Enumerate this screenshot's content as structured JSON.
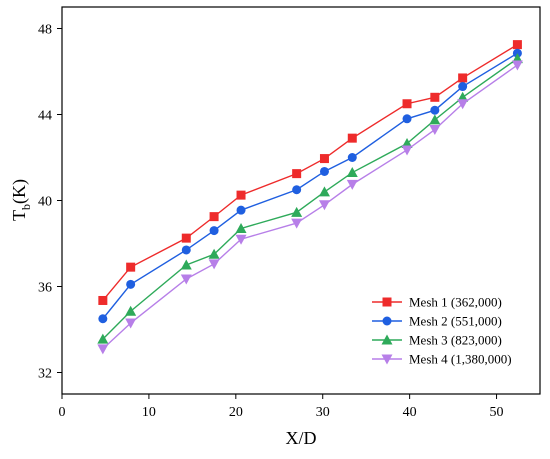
{
  "chart_data": {
    "type": "line",
    "title": "",
    "xlabel": "X/D",
    "ylabel_main": "T",
    "ylabel_sub": "b",
    "ylabel_tail": "(K)",
    "xlim": [
      0,
      55
    ],
    "ylim": [
      31,
      49
    ],
    "xticks": [
      0,
      10,
      20,
      30,
      40,
      50
    ],
    "yticks": [
      32,
      36,
      40,
      44,
      48
    ],
    "grid": false,
    "legend_position": "bottom-right",
    "x": [
      4.7,
      7.9,
      14.3,
      17.5,
      20.6,
      27.0,
      30.2,
      33.4,
      39.7,
      42.9,
      46.1,
      52.4
    ],
    "series": [
      {
        "name": "Mesh 1 (362,000)",
        "color": "#ee2b2b",
        "marker": "square",
        "values": [
          35.35,
          36.9,
          38.25,
          39.25,
          40.25,
          41.25,
          41.95,
          42.9,
          44.5,
          44.8,
          45.7,
          47.25
        ]
      },
      {
        "name": "Mesh 2 (551,000)",
        "color": "#1f5fe0",
        "marker": "circle",
        "values": [
          34.5,
          36.1,
          37.7,
          38.6,
          39.55,
          40.5,
          41.35,
          42.0,
          43.8,
          44.2,
          45.3,
          46.85
        ]
      },
      {
        "name": "Mesh 3 (823,000)",
        "color": "#2eaa5a",
        "marker": "triangle-up",
        "values": [
          33.55,
          34.85,
          37.0,
          37.5,
          38.7,
          39.45,
          40.4,
          41.3,
          42.65,
          43.75,
          44.8,
          46.6
        ]
      },
      {
        "name": "Mesh 4 (1,380,000)",
        "color": "#b77fe8",
        "marker": "triangle-down",
        "values": [
          33.1,
          34.3,
          36.35,
          37.05,
          38.2,
          38.95,
          39.8,
          40.75,
          42.35,
          43.3,
          44.5,
          46.3
        ]
      }
    ]
  }
}
